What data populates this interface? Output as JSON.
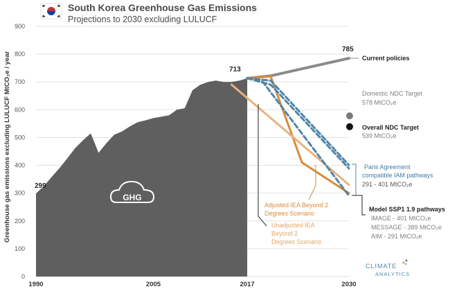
{
  "header": {
    "title": "South Korea Greenhouse Gas Emissions",
    "subtitle": "Projections to 2030 excluding LULUCF"
  },
  "logo": {
    "line1": "CLIMATE",
    "line2": "ANALYTICS"
  },
  "cloud_label": "GHG",
  "colors": {
    "historical": "#5f5f5f",
    "current_policies": "#8a8a8a",
    "iea_adjusted": "#d98a3a",
    "iea_unadjusted": "#e8b27e",
    "ssp": "#4f86a8",
    "label_dark": "#222222",
    "label_grey": "#7f7f7f",
    "label_blue": "#3f7da5",
    "label_orange": "#d98a3a",
    "label_light_orange": "#e3a56b"
  },
  "chart_data": {
    "type": "area",
    "title": "South Korea Greenhouse Gas Emissions",
    "subtitle": "Projections to 2030 excluding LULUCF",
    "ylabel": "Greenhouse gas emissions excluding LULUCF MtCO₂e / year",
    "xlabel": "",
    "xlim": [
      1990,
      2030
    ],
    "ylim": [
      0,
      900
    ],
    "y_ticks": [
      "0",
      "100",
      "200",
      "300",
      "400",
      "500",
      "600",
      "700",
      "800",
      "900"
    ],
    "x_ticks": [
      "1990",
      "2005",
      "2017",
      "2030"
    ],
    "grid": true,
    "historical": {
      "x": [
        1990,
        1991,
        1992,
        1993,
        1994,
        1995,
        1996,
        1997,
        1998,
        1999,
        2000,
        2001,
        2002,
        2003,
        2004,
        2005,
        2006,
        2007,
        2008,
        2009,
        2010,
        2011,
        2012,
        2013,
        2014,
        2015,
        2016,
        2017
      ],
      "y": [
        299,
        325,
        358,
        390,
        425,
        462,
        490,
        515,
        445,
        480,
        510,
        522,
        540,
        555,
        562,
        570,
        575,
        580,
        600,
        605,
        670,
        690,
        700,
        705,
        700,
        700,
        705,
        713
      ]
    },
    "series": [
      {
        "name": "Current policies",
        "x": [
          2017,
          2020,
          2030
        ],
        "y": [
          713,
          722,
          785
        ]
      },
      {
        "name": "Adjusted IEA Beyond 2 Degrees Scenario",
        "x": [
          2017,
          2020,
          2024,
          2030
        ],
        "y": [
          713,
          720,
          410,
          300
        ]
      },
      {
        "name": "Unadjusted IEA Beyond 2 Degrees Scenario",
        "x": [
          2015,
          2030
        ],
        "y": [
          690,
          330
        ]
      },
      {
        "name": "IMAGE",
        "x": [
          2017,
          2020,
          2030
        ],
        "y": [
          713,
          705,
          401
        ]
      },
      {
        "name": "MESSAGE",
        "x": [
          2017,
          2020,
          2030
        ],
        "y": [
          713,
          690,
          389
        ]
      },
      {
        "name": "AIM",
        "x": [
          2017,
          2019,
          2030
        ],
        "y": [
          713,
          700,
          291
        ]
      }
    ],
    "points": [
      {
        "name": "Domestic NDC Target",
        "x": 2030,
        "y": 578
      },
      {
        "name": "Overall NDC Target",
        "x": 2030,
        "y": 539
      }
    ],
    "data_labels": [
      {
        "text": "299",
        "x": 1990,
        "y": 299
      },
      {
        "text": "713",
        "x": 2017,
        "y": 713
      },
      {
        "text": "785",
        "x": 2030,
        "y": 785
      }
    ],
    "annotations": {
      "current_policies": "Current policies",
      "domestic_ndc": {
        "title": "Domestic NDC Target",
        "value": "578 MtCO₂e"
      },
      "overall_ndc": {
        "title": "Overall NDC Target",
        "value": "539 MtCO₂e"
      },
      "paris": {
        "line1": "Paris Agreement",
        "line2": "compatible IAM pathways",
        "value": "291 - 401 MtCO₂e"
      },
      "ssp": {
        "title": "Model SSP1 1.9 pathways",
        "image": "IMAGE - 401 MtCO₂e",
        "message": "MESSAGE - 389 MtCO₂e",
        "aim": "AIM - 291 MtCO₂e"
      },
      "adjusted_iea": {
        "line1": "Adjusted IEA Beyond 2",
        "line2": "Degrees Scenario"
      },
      "unadjusted_iea": {
        "line1": "Unadjusted IEA",
        "line2": "Beyond 2",
        "line3": "Degrees Scenario"
      }
    }
  }
}
